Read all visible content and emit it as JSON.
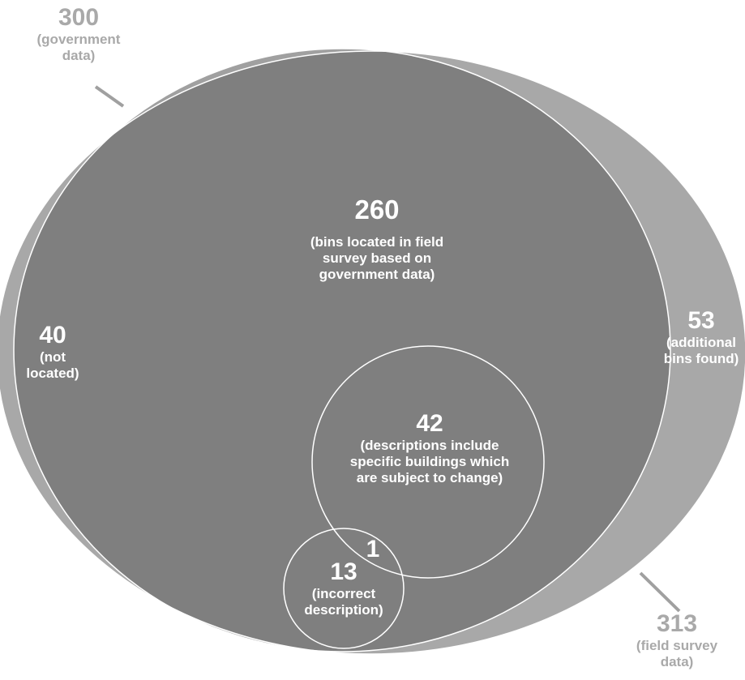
{
  "colors": {
    "background": "#ffffff",
    "government_circle": "#a0a0a0",
    "field_survey_circle": "#a8a8a8",
    "overlap_region": "#7f7f7f",
    "outline": "#ffffff",
    "outside_label": "#a9a9a9",
    "inside_label": "#ffffff",
    "leader_line": "#a0a0a0"
  },
  "sets": {
    "government": {
      "count": "300",
      "caption": "(government data)"
    },
    "field_survey": {
      "count": "313",
      "caption": "(field survey data)"
    }
  },
  "regions": {
    "located": {
      "count": "260",
      "caption": "(bins located in field survey based on government data)"
    },
    "not_located": {
      "count": "40",
      "caption": "(not located)"
    },
    "additional": {
      "count": "53",
      "caption": "(additional bins found)"
    },
    "specific_buildings": {
      "count": "42",
      "caption": "(descriptions include specific buildings which are subject to change)"
    },
    "incorrect": {
      "count": "13",
      "caption": "(incorrect description)"
    },
    "intersection": {
      "count": "1"
    }
  }
}
